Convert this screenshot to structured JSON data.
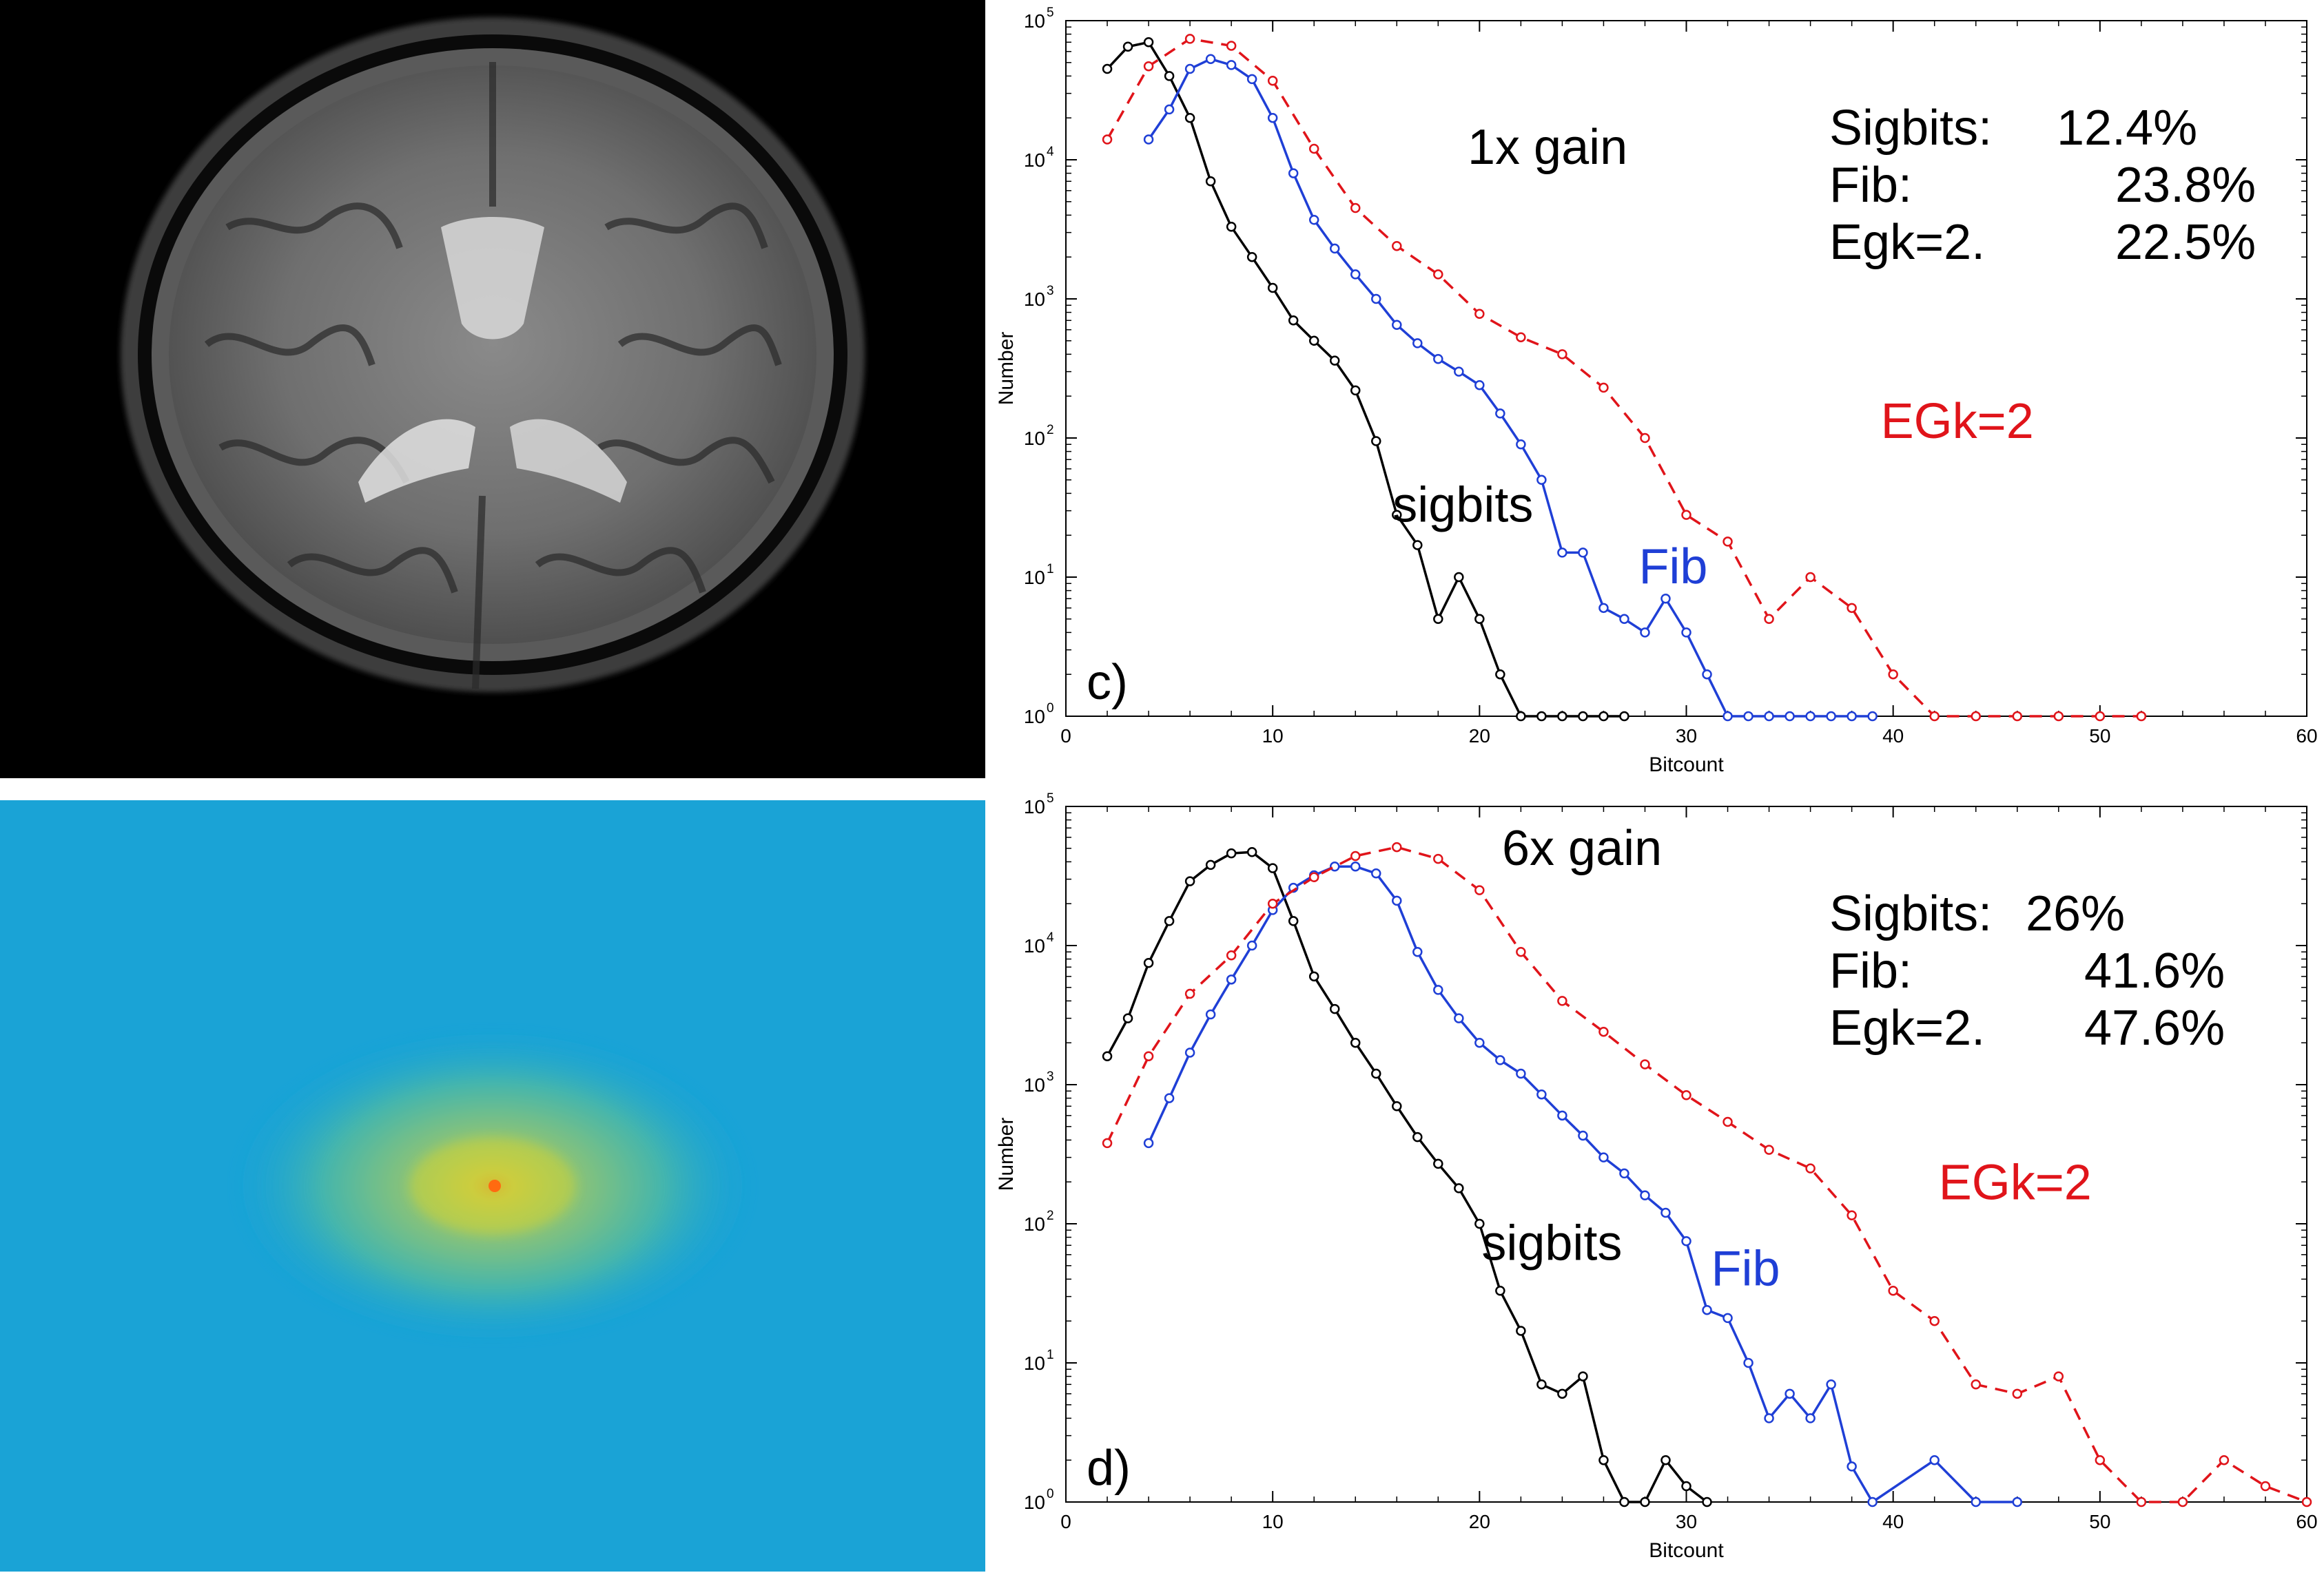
{
  "colors": {
    "sigbits": "#000000",
    "fib": "#1f3fd6",
    "egk": "#e0141a"
  },
  "images": {
    "mri": {
      "kind": "brain-mri-axial-slice"
    },
    "fft": {
      "kind": "fourier-spectrum-log-magnitude"
    }
  },
  "chart_data": [
    {
      "type": "line",
      "panel_label": "c)",
      "gain_label": "1x gain",
      "xlabel": "Bitcount",
      "ylabel": "Number",
      "xlim": [
        0,
        60
      ],
      "ylim": [
        1,
        100000
      ],
      "yscale": "log",
      "xticks": [
        "0",
        "10",
        "20",
        "30",
        "40",
        "50",
        "60"
      ],
      "yticks": [
        {
          "value": 1,
          "mantissa": "10",
          "exp": "0"
        },
        {
          "value": 10,
          "mantissa": "10",
          "exp": "1"
        },
        {
          "value": 100,
          "mantissa": "10",
          "exp": "2"
        },
        {
          "value": 1000,
          "mantissa": "10",
          "exp": "3"
        },
        {
          "value": 10000,
          "mantissa": "10",
          "exp": "4"
        },
        {
          "value": 100000,
          "mantissa": "10",
          "exp": "5"
        }
      ],
      "stats": [
        {
          "name": "Sigbits:",
          "value": "12.4%"
        },
        {
          "name": "Fib:",
          "value": "23.8%"
        },
        {
          "name": "Egk=2.",
          "value": "22.5%"
        }
      ],
      "series": [
        {
          "name": "sigbits",
          "color_key": "sigbits",
          "dashed": false,
          "x": [
            2,
            3,
            4,
            5,
            6,
            7,
            8,
            9,
            10,
            11,
            12,
            13,
            14,
            15,
            16,
            17,
            18,
            19,
            20,
            21,
            22,
            23,
            24,
            25,
            26,
            27
          ],
          "y": [
            45000,
            65000,
            70000,
            40000,
            20000,
            7000,
            3300,
            2000,
            1200,
            700,
            500,
            360,
            220,
            95,
            28,
            17,
            5,
            10,
            5,
            2,
            1,
            1,
            1,
            1,
            1,
            1
          ]
        },
        {
          "name": "Fib",
          "color_key": "fib",
          "dashed": false,
          "x": [
            4,
            5,
            6,
            7,
            8,
            9,
            10,
            11,
            12,
            13,
            14,
            15,
            16,
            17,
            18,
            19,
            20,
            21,
            22,
            23,
            24,
            25,
            26,
            27,
            28,
            29,
            30,
            31,
            32,
            33,
            34,
            35,
            36,
            37,
            38,
            39
          ],
          "y": [
            14000,
            23000,
            45000,
            53000,
            48000,
            38000,
            20000,
            8000,
            3700,
            2300,
            1500,
            1000,
            650,
            480,
            370,
            300,
            240,
            150,
            90,
            50,
            15,
            15,
            6,
            5,
            4,
            7,
            4,
            2,
            1,
            1,
            1,
            1,
            1,
            1,
            1,
            1
          ]
        },
        {
          "name": "EGk=2",
          "color_key": "egk",
          "dashed": true,
          "x": [
            2,
            4,
            6,
            8,
            10,
            12,
            14,
            16,
            18,
            20,
            22,
            24,
            26,
            28,
            30,
            32,
            34,
            36,
            38,
            40,
            42,
            44,
            46,
            48,
            50,
            52
          ],
          "y": [
            14000,
            47000,
            74000,
            66000,
            37000,
            12000,
            4500,
            2400,
            1500,
            780,
            530,
            400,
            230,
            100,
            28,
            18,
            5,
            10,
            6,
            2,
            1,
            1,
            1,
            1,
            1,
            1
          ]
        }
      ],
      "series_labels": [
        {
          "text": "sigbits",
          "color_key": "sigbits",
          "x": 15.8,
          "y": 25
        },
        {
          "text": "Fib",
          "color_key": "fib",
          "x": 27.7,
          "y": 9
        },
        {
          "text": "EGk=2",
          "color_key": "egk",
          "x": 39.4,
          "y": 100
        }
      ]
    },
    {
      "type": "line",
      "panel_label": "d)",
      "gain_label": "6x gain",
      "xlabel": "Bitcount",
      "ylabel": "Number",
      "xlim": [
        0,
        60
      ],
      "ylim": [
        1,
        100000
      ],
      "yscale": "log",
      "xticks": [
        "0",
        "10",
        "20",
        "30",
        "40",
        "50",
        "60"
      ],
      "yticks": [
        {
          "value": 1,
          "mantissa": "10",
          "exp": "0"
        },
        {
          "value": 10,
          "mantissa": "10",
          "exp": "1"
        },
        {
          "value": 100,
          "mantissa": "10",
          "exp": "2"
        },
        {
          "value": 1000,
          "mantissa": "10",
          "exp": "3"
        },
        {
          "value": 10000,
          "mantissa": "10",
          "exp": "4"
        },
        {
          "value": 100000,
          "mantissa": "10",
          "exp": "5"
        }
      ],
      "stats": [
        {
          "name": "Sigbits:",
          "value": "26%"
        },
        {
          "name": "Fib:",
          "value": "41.6%"
        },
        {
          "name": "Egk=2.",
          "value": "47.6%"
        }
      ],
      "series": [
        {
          "name": "sigbits",
          "color_key": "sigbits",
          "dashed": false,
          "x": [
            2,
            3,
            4,
            5,
            6,
            7,
            8,
            9,
            10,
            11,
            12,
            13,
            14,
            15,
            16,
            17,
            18,
            19,
            20,
            21,
            22,
            23,
            24,
            25,
            26,
            27,
            28,
            29,
            30,
            31
          ],
          "y": [
            1600,
            3000,
            7500,
            15000,
            29000,
            38000,
            46000,
            47000,
            36000,
            15000,
            6000,
            3500,
            2000,
            1200,
            700,
            420,
            270,
            180,
            100,
            33,
            17,
            7,
            6,
            8,
            2,
            1,
            1,
            2,
            1.3,
            1
          ]
        },
        {
          "name": "Fib",
          "color_key": "fib",
          "dashed": false,
          "x": [
            4,
            5,
            6,
            7,
            8,
            9,
            10,
            11,
            12,
            13,
            14,
            15,
            16,
            17,
            18,
            19,
            20,
            21,
            22,
            23,
            24,
            25,
            26,
            27,
            28,
            29,
            30,
            31,
            32,
            33,
            34,
            35,
            36,
            37,
            38,
            39,
            42,
            44,
            46
          ],
          "y": [
            380,
            800,
            1700,
            3200,
            5700,
            10000,
            18000,
            26000,
            32000,
            37000,
            37000,
            33000,
            21000,
            9000,
            4800,
            3000,
            2000,
            1500,
            1200,
            850,
            600,
            430,
            300,
            230,
            160,
            120,
            75,
            24,
            21,
            10,
            4,
            6,
            4,
            7,
            1.8,
            1,
            2,
            1,
            1
          ]
        },
        {
          "name": "EGk=2",
          "color_key": "egk",
          "dashed": true,
          "x": [
            2,
            4,
            6,
            8,
            10,
            12,
            14,
            16,
            18,
            20,
            22,
            24,
            26,
            28,
            30,
            32,
            34,
            36,
            38,
            40,
            42,
            44,
            46,
            48,
            50,
            52,
            54,
            56,
            58,
            60
          ],
          "y": [
            380,
            1600,
            4500,
            8500,
            20000,
            31000,
            44000,
            51000,
            42000,
            25000,
            9000,
            4000,
            2400,
            1400,
            840,
            540,
            340,
            250,
            115,
            33,
            20,
            7,
            6,
            8,
            2,
            1,
            1,
            2,
            1.3,
            1
          ]
        }
      ],
      "series_labels": [
        {
          "text": "sigbits",
          "color_key": "sigbits",
          "x": 20.1,
          "y": 55
        },
        {
          "text": "Fib",
          "color_key": "fib",
          "x": 31.2,
          "y": 36
        },
        {
          "text": "EGk=2",
          "color_key": "egk",
          "x": 42.2,
          "y": 150
        }
      ]
    }
  ]
}
